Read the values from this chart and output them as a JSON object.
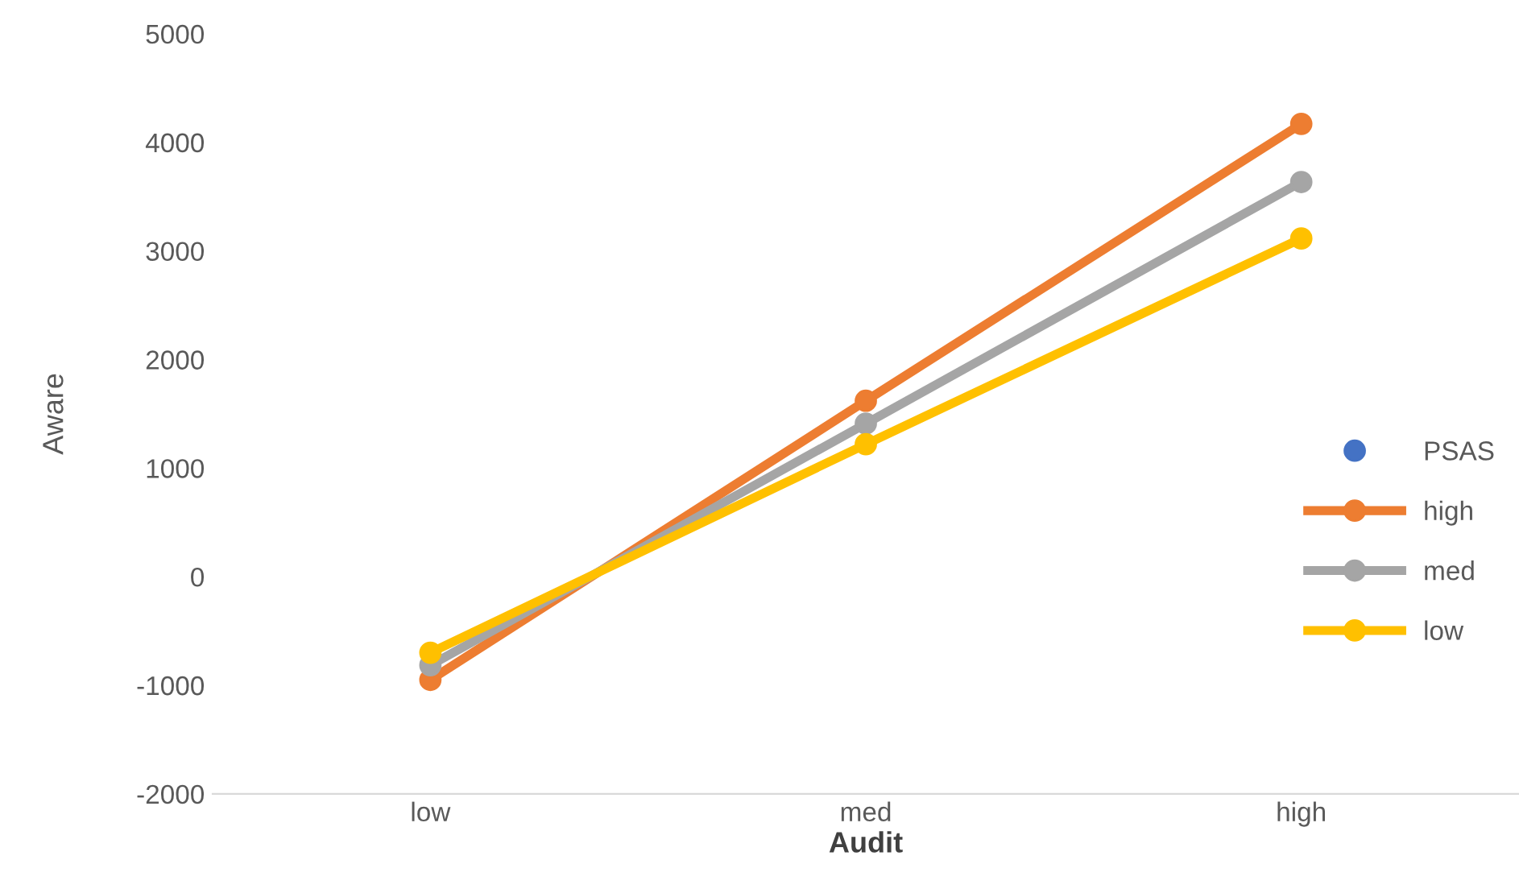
{
  "chart_data": {
    "type": "line",
    "xlabel": "Audit",
    "ylabel": "Aware",
    "categories": [
      "low",
      "med",
      "high"
    ],
    "series": [
      {
        "name": "PSAS",
        "type": "scatter",
        "color": "#4472c4",
        "values": [
          null,
          null,
          null
        ]
      },
      {
        "name": "high",
        "color": "#ed7d31",
        "values": [
          -950,
          1620,
          4170
        ]
      },
      {
        "name": "med",
        "color": "#a5a5a5",
        "values": [
          -815,
          1410,
          3635
        ]
      },
      {
        "name": "low",
        "color": "#ffc000",
        "values": [
          -700,
          1220,
          3115
        ]
      }
    ],
    "ylim": [
      -2000,
      5000
    ],
    "yticks": [
      -2000,
      -1000,
      0,
      1000,
      2000,
      3000,
      4000,
      5000
    ],
    "grid": false,
    "legend": "right",
    "marker": "circle"
  }
}
